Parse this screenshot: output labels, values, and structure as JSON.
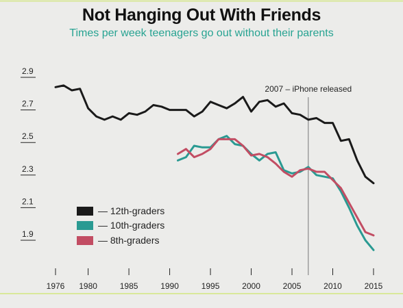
{
  "chart_data": {
    "type": "line",
    "title": "Not Hanging Out With Friends",
    "subtitle": "Times per week teenagers go out without their parents",
    "xlabel": "",
    "ylabel": "",
    "xlim": [
      1974,
      2017
    ],
    "ylim": [
      1.85,
      2.95
    ],
    "x_ticks": [
      1976,
      1980,
      1985,
      1990,
      1995,
      2000,
      2005,
      2010,
      2015
    ],
    "y_ticks": [
      1.9,
      2.1,
      2.3,
      2.5,
      2.7,
      2.9
    ],
    "annotation": {
      "x": 2007,
      "label": "2007 – iPhone released"
    },
    "legend_position": "bottom-left",
    "grid": false,
    "series": [
      {
        "name": "— 12th-graders",
        "color": "#1a1a1a",
        "x": [
          1976,
          1977,
          1978,
          1979,
          1980,
          1981,
          1982,
          1983,
          1984,
          1985,
          1986,
          1987,
          1988,
          1989,
          1990,
          1991,
          1992,
          1993,
          1994,
          1995,
          1996,
          1997,
          1998,
          1999,
          2000,
          2001,
          2002,
          2003,
          2004,
          2005,
          2006,
          2007,
          2008,
          2009,
          2010,
          2011,
          2012,
          2013,
          2014,
          2015
        ],
        "values": [
          2.84,
          2.85,
          2.82,
          2.83,
          2.71,
          2.66,
          2.64,
          2.66,
          2.64,
          2.68,
          2.67,
          2.69,
          2.73,
          2.72,
          2.7,
          2.7,
          2.7,
          2.66,
          2.69,
          2.75,
          2.73,
          2.71,
          2.74,
          2.78,
          2.69,
          2.75,
          2.76,
          2.72,
          2.74,
          2.68,
          2.67,
          2.64,
          2.65,
          2.62,
          2.62,
          2.51,
          2.52,
          2.39,
          2.29,
          2.25
        ]
      },
      {
        "name": "— 10th-graders",
        "color": "#2a9a92",
        "x": [
          1991,
          1992,
          1993,
          1994,
          1995,
          1996,
          1997,
          1998,
          1999,
          2000,
          2001,
          2002,
          2003,
          2004,
          2005,
          2006,
          2007,
          2008,
          2009,
          2010,
          2011,
          2012,
          2013,
          2014,
          2015
        ],
        "values": [
          2.39,
          2.41,
          2.48,
          2.47,
          2.47,
          2.52,
          2.54,
          2.49,
          2.48,
          2.43,
          2.39,
          2.43,
          2.44,
          2.33,
          2.31,
          2.32,
          2.35,
          2.3,
          2.29,
          2.28,
          2.2,
          2.1,
          1.99,
          1.9,
          1.84
        ]
      },
      {
        "name": "— 8th-graders",
        "color": "#c24d63",
        "x": [
          1991,
          1992,
          1993,
          1994,
          1995,
          1996,
          1997,
          1998,
          1999,
          2000,
          2001,
          2002,
          2003,
          2004,
          2005,
          2006,
          2007,
          2008,
          2009,
          2010,
          2011,
          2012,
          2013,
          2014,
          2015
        ],
        "values": [
          2.43,
          2.46,
          2.41,
          2.43,
          2.46,
          2.52,
          2.52,
          2.52,
          2.48,
          2.42,
          2.43,
          2.41,
          2.37,
          2.32,
          2.29,
          2.33,
          2.34,
          2.32,
          2.32,
          2.27,
          2.22,
          2.13,
          2.04,
          1.95,
          1.93
        ]
      }
    ]
  }
}
